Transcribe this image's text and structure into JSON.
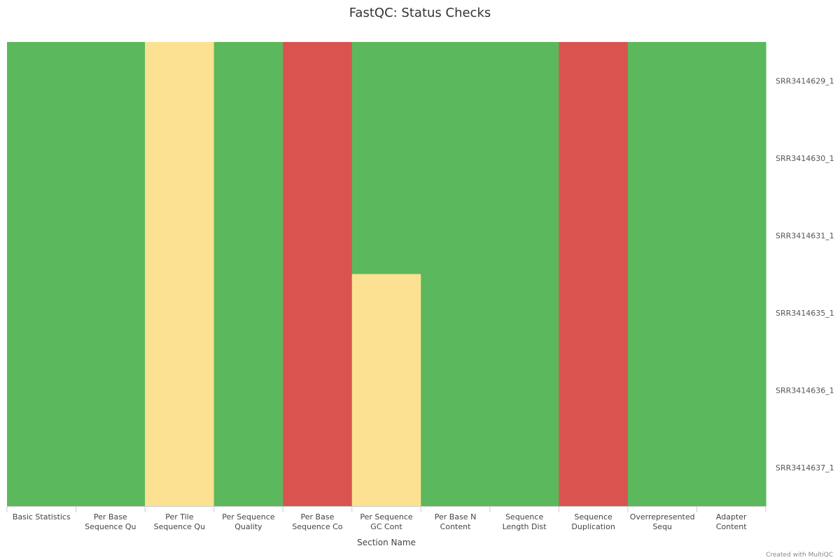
{
  "chart_data": {
    "type": "heatmap",
    "title": "FastQC: Status Checks",
    "xlabel": "Section Name",
    "ylabel": "",
    "categories": [
      "Basic Statistics",
      "Per Base Sequence Qu",
      "Per Tile Sequence Qu",
      "Per Sequence Quality",
      "Per Base Sequence Co",
      "Per Sequence GC Cont",
      "Per Base N Content",
      "Sequence Length Dist",
      "Sequence Duplication",
      "Overrepresented Sequ",
      "Adapter Content"
    ],
    "category_lines": [
      [
        "Basic Statistics"
      ],
      [
        "Per Base",
        "Sequence Qu"
      ],
      [
        "Per Tile",
        "Sequence Qu"
      ],
      [
        "Per Sequence",
        "Quality"
      ],
      [
        "Per Base",
        "Sequence Co"
      ],
      [
        "Per Sequence",
        "GC Cont"
      ],
      [
        "Per Base N",
        "Content"
      ],
      [
        "Sequence",
        "Length Dist"
      ],
      [
        "Sequence",
        "Duplication"
      ],
      [
        "Overrepresented",
        "Sequ"
      ],
      [
        "Adapter",
        "Content"
      ]
    ],
    "samples": [
      "SRR3414629_1",
      "SRR3414630_1",
      "SRR3414631_1",
      "SRR3414635_1",
      "SRR3414636_1",
      "SRR3414637_1"
    ],
    "values": [
      [
        "pass",
        "pass",
        "warn",
        "pass",
        "fail",
        "pass",
        "pass",
        "pass",
        "fail",
        "pass",
        "pass"
      ],
      [
        "pass",
        "pass",
        "warn",
        "pass",
        "fail",
        "pass",
        "pass",
        "pass",
        "fail",
        "pass",
        "pass"
      ],
      [
        "pass",
        "pass",
        "warn",
        "pass",
        "fail",
        "pass",
        "pass",
        "pass",
        "fail",
        "pass",
        "pass"
      ],
      [
        "pass",
        "pass",
        "warn",
        "pass",
        "fail",
        "warn",
        "pass",
        "pass",
        "fail",
        "pass",
        "pass"
      ],
      [
        "pass",
        "pass",
        "warn",
        "pass",
        "fail",
        "warn",
        "pass",
        "pass",
        "fail",
        "pass",
        "pass"
      ],
      [
        "pass",
        "pass",
        "warn",
        "pass",
        "fail",
        "warn",
        "pass",
        "pass",
        "fail",
        "pass",
        "pass"
      ]
    ],
    "status_colors": {
      "pass": "#5cb85c",
      "warn": "#fbe191",
      "fail": "#d9534f"
    },
    "grid": false,
    "legend": "none"
  },
  "credit": "Created with MultiQC"
}
